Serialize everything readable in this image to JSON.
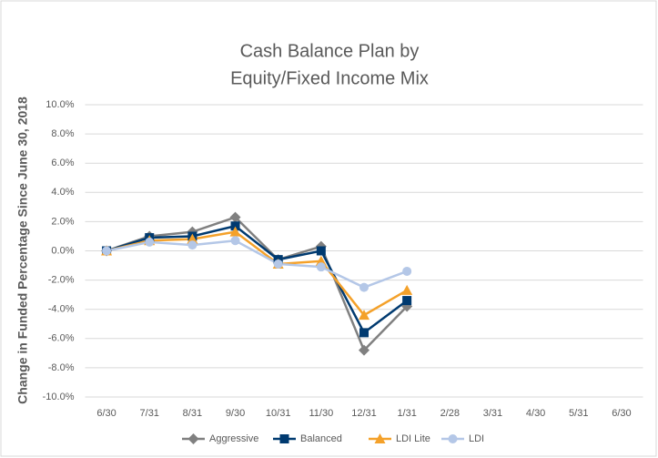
{
  "chart_data": {
    "type": "line",
    "title": [
      "Cash Balance Plan by",
      "Equity/Fixed Income Mix"
    ],
    "ylabel": "Change in Funded Percentage Since June 30, 2018",
    "categories": [
      "6/30",
      "7/31",
      "8/31",
      "9/30",
      "10/31",
      "11/30",
      "12/31",
      "1/31",
      "2/28",
      "3/31",
      "4/30",
      "5/31",
      "6/30"
    ],
    "series": [
      {
        "name": "Aggressive",
        "color": "#808080",
        "marker": "diamond",
        "values": [
          0,
          1.0,
          1.3,
          2.3,
          -0.6,
          0.3,
          -6.8,
          -3.8,
          null,
          null,
          null,
          null,
          null
        ]
      },
      {
        "name": "Balanced",
        "color": "#003a70",
        "marker": "square",
        "values": [
          0,
          0.9,
          1.0,
          1.7,
          -0.6,
          0.0,
          -5.6,
          -3.4,
          null,
          null,
          null,
          null,
          null
        ]
      },
      {
        "name": "LDI Lite",
        "color": "#f4a12a",
        "marker": "triangle",
        "values": [
          0,
          0.7,
          0.8,
          1.3,
          -0.9,
          -0.7,
          -4.4,
          -2.7,
          null,
          null,
          null,
          null,
          null
        ]
      },
      {
        "name": "LDI",
        "color": "#b4c7e7",
        "marker": "circle",
        "values": [
          0,
          0.6,
          0.4,
          0.7,
          -0.9,
          -1.1,
          -2.5,
          -1.4,
          null,
          null,
          null,
          null,
          null
        ]
      }
    ],
    "ylim": [
      -10,
      10
    ],
    "yticks": [
      {
        "value": -10,
        "label": "-10.0%"
      },
      {
        "value": -8,
        "label": "-8.0%"
      },
      {
        "value": -6,
        "label": "-6.0%"
      },
      {
        "value": -4,
        "label": "-4.0%"
      },
      {
        "value": -2,
        "label": "-2.0%"
      },
      {
        "value": 0,
        "label": "0.0%"
      },
      {
        "value": 2,
        "label": "2.0%"
      },
      {
        "value": 4,
        "label": "4.0%"
      },
      {
        "value": 6,
        "label": "6.0%"
      },
      {
        "value": 8,
        "label": "8.0%"
      },
      {
        "value": 10,
        "label": "10.0%"
      }
    ],
    "grid": true,
    "legend": "bottom"
  }
}
